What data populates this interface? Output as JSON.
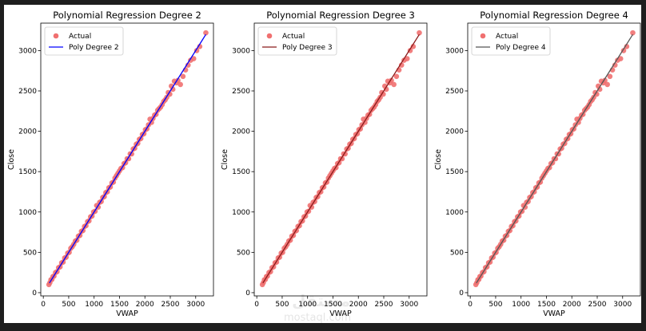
{
  "chart_data": [
    {
      "type": "scatter",
      "title": "Polynomial Regression Degree 2",
      "xlabel": "VWAP",
      "ylabel": "Close",
      "xlim": [
        -50,
        3350
      ],
      "ylim": [
        -40,
        3340
      ],
      "xticks": [
        0,
        500,
        1000,
        1500,
        2000,
        2500,
        3000
      ],
      "yticks": [
        0,
        500,
        1000,
        1500,
        2000,
        2500,
        3000
      ],
      "legend_position": "top-left",
      "series": [
        {
          "name": "Actual",
          "kind": "scatter",
          "color": "#f07070"
        },
        {
          "name": "Poly Degree 2",
          "kind": "line",
          "color": "#0000ff",
          "x": [
            120,
            3200
          ],
          "y": [
            120,
            3200
          ]
        }
      ]
    },
    {
      "type": "scatter",
      "title": "Polynomial Regression Degree 3",
      "xlabel": "VWAP",
      "ylabel": "Close",
      "xlim": [
        -50,
        3350
      ],
      "ylim": [
        -40,
        3340
      ],
      "xticks": [
        0,
        500,
        1000,
        1500,
        2000,
        2500,
        3000
      ],
      "yticks": [
        0,
        500,
        1000,
        1500,
        2000,
        2500,
        3000
      ],
      "legend_position": "top-left",
      "series": [
        {
          "name": "Actual",
          "kind": "scatter",
          "color": "#f07070"
        },
        {
          "name": "Poly Degree 3",
          "kind": "line",
          "color": "#8b1a1a",
          "x": [
            120,
            3200
          ],
          "y": [
            120,
            3200
          ]
        }
      ]
    },
    {
      "type": "scatter",
      "title": "Polynomial Regression Degree 4",
      "xlabel": "VWAP",
      "ylabel": "Close",
      "xlim": [
        -50,
        3350
      ],
      "ylim": [
        -40,
        3340
      ],
      "xticks": [
        0,
        500,
        1000,
        1500,
        2000,
        2500,
        3000
      ],
      "yticks": [
        0,
        500,
        1000,
        1500,
        2000,
        2500,
        3000
      ],
      "legend_position": "top-left",
      "series": [
        {
          "name": "Actual",
          "kind": "scatter",
          "color": "#f07070"
        },
        {
          "name": "Poly Degree 4",
          "kind": "line",
          "color": "#555555",
          "x": [
            120,
            3200
          ],
          "y": [
            120,
            3200
          ]
        }
      ]
    }
  ],
  "actual_points": {
    "x": [
      110,
      130,
      150,
      170,
      190,
      210,
      240,
      270,
      300,
      330,
      360,
      390,
      420,
      450,
      480,
      510,
      540,
      570,
      600,
      630,
      660,
      690,
      720,
      750,
      780,
      810,
      840,
      870,
      900,
      930,
      960,
      990,
      1020,
      1050,
      1080,
      1110,
      1140,
      1170,
      1200,
      1230,
      1260,
      1290,
      1320,
      1350,
      1380,
      1410,
      1440,
      1470,
      1500,
      1530,
      1560,
      1590,
      1620,
      1650,
      1680,
      1710,
      1740,
      1770,
      1800,
      1830,
      1860,
      1890,
      1920,
      1950,
      1980,
      2010,
      2040,
      2070,
      2100,
      2130,
      2160,
      2190,
      2220,
      2250,
      2280,
      2310,
      2340,
      2370,
      2400,
      2430,
      2460,
      2490,
      2520,
      2550,
      2580,
      2620,
      2650,
      2700,
      2750,
      2800,
      2850,
      2900,
      2960,
      3020,
      3080,
      3200
    ],
    "y": [
      100,
      125,
      160,
      165,
      200,
      205,
      250,
      260,
      310,
      320,
      370,
      380,
      430,
      440,
      490,
      500,
      550,
      570,
      600,
      640,
      650,
      700,
      710,
      760,
      770,
      820,
      830,
      880,
      890,
      940,
      950,
      1000,
      1010,
      1080,
      1060,
      1120,
      1130,
      1180,
      1190,
      1240,
      1250,
      1300,
      1310,
      1360,
      1370,
      1420,
      1450,
      1480,
      1510,
      1540,
      1550,
      1600,
      1610,
      1660,
      1660,
      1720,
      1720,
      1780,
      1790,
      1840,
      1850,
      1900,
      1910,
      1960,
      1970,
      2020,
      2030,
      2080,
      2150,
      2110,
      2160,
      2200,
      2210,
      2260,
      2280,
      2300,
      2330,
      2370,
      2390,
      2420,
      2480,
      2460,
      2560,
      2520,
      2620,
      2600,
      2630,
      2580,
      2680,
      2760,
      2820,
      2880,
      2900,
      3000,
      3050,
      3220
    ]
  }
}
